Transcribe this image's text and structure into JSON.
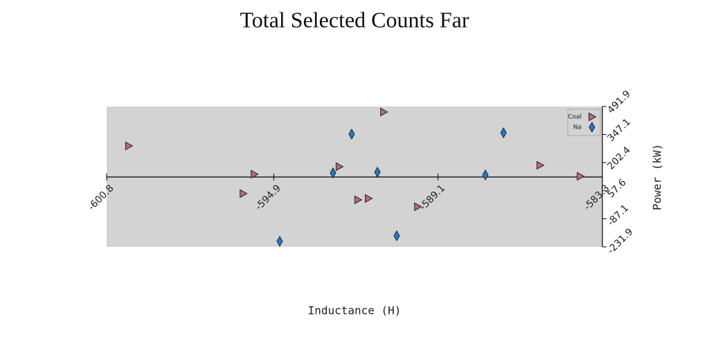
{
  "chart_data": {
    "type": "scatter",
    "title": "Total Selected Counts Far",
    "x_label": "Inductance (H)",
    "y_label": "Power (kW)",
    "xlim": [
      -600.8,
      -583.3
    ],
    "xticks": [
      -600.8,
      -594.9,
      -589.1,
      -583.3
    ],
    "ylim": [
      -231.9,
      491.9
    ],
    "yticks": [
      -231.9,
      -87.1,
      57.6,
      202.4,
      347.1,
      491.9
    ],
    "grid": false,
    "legend": "upper right",
    "series": [
      {
        "name": "Coal",
        "color": "#b8678c",
        "marker": "triangle",
        "x": [
          -600.02,
          -595.59,
          -595.98,
          -592.59,
          -591.93,
          -591.56,
          -591.02,
          -589.82,
          -585.5,
          -584.08
        ],
        "values": [
          288.6,
          142.5,
          42.7,
          181.7,
          10.6,
          17.7,
          463.4,
          -25.1,
          188.8,
          131.8
        ]
      },
      {
        "name": "Na",
        "color": "#1f7ad4",
        "marker": "diamond",
        "x": [
          -594.69,
          -592.81,
          -592.15,
          -591.24,
          -590.56,
          -587.43,
          -586.79
        ],
        "values": [
          -203.4,
          149.6,
          349.3,
          153.2,
          -174.8,
          138.9,
          356.4
        ]
      }
    ]
  }
}
